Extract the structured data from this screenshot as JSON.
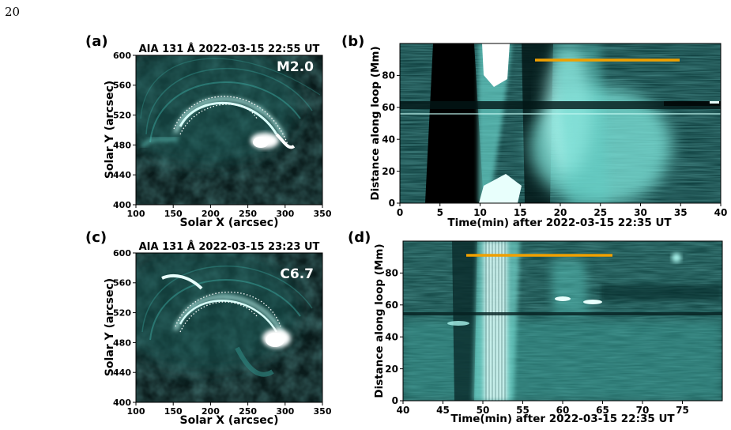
{
  "page_number": "20",
  "panels": [
    {
      "id": "a",
      "label": "(a)",
      "title": "AIA 131 Å 2022-03-15 22:55 UT",
      "annotation": "M2.0",
      "xlabel": "Solar X (arcsec)",
      "ylabel": "Solar Y (arcsec)",
      "xticks": [
        "100",
        "150",
        "200",
        "250",
        "300",
        "350"
      ],
      "yticks": [
        "400",
        "440",
        "480",
        "520",
        "560",
        "600"
      ]
    },
    {
      "id": "b",
      "label": "(b)",
      "xlabel": "Time(min) after 2022-03-15 22:35 UT",
      "ylabel": "Distance along loop (Mm)",
      "xticks": [
        "0",
        "5",
        "10",
        "15",
        "20",
        "25",
        "30",
        "35",
        "40"
      ],
      "yticks": [
        "0",
        "20",
        "40",
        "60",
        "80"
      ]
    },
    {
      "id": "c",
      "label": "(c)",
      "title": "AIA 131 Å 2022-03-15 23:23 UT",
      "annotation": "C6.7",
      "xlabel": "Solar X (arcsec)",
      "ylabel": "Solar Y (arcsec)",
      "xticks": [
        "100",
        "150",
        "200",
        "250",
        "300",
        "350"
      ],
      "yticks": [
        "400",
        "440",
        "480",
        "520",
        "560",
        "600"
      ]
    },
    {
      "id": "d",
      "label": "(d)",
      "xlabel": "Time(min) after 2022-03-15 22:35 UT",
      "ylabel": "Distance along loop (Mm)",
      "xticks": [
        "40",
        "45",
        "50",
        "55",
        "60",
        "65",
        "70",
        "75"
      ],
      "yticks": [
        "0",
        "20",
        "40",
        "60",
        "80"
      ]
    }
  ],
  "chart_data": [
    {
      "type": "image",
      "panel": "a",
      "title": "AIA 131 Å 2022-03-15 22:55 UT",
      "annotation": "M2.0",
      "xlabel": "Solar X (arcsec)",
      "ylabel": "Solar Y (arcsec)",
      "xlim": [
        100,
        350
      ],
      "ylim": [
        400,
        600
      ],
      "colormap": "aia131-teal",
      "loop_outline_style": "white dotted"
    },
    {
      "type": "heatmap",
      "panel": "b",
      "xlabel": "Time(min) after 2022-03-15 22:35 UT",
      "ylabel": "Distance along loop (Mm)",
      "xlim": [
        0,
        40
      ],
      "ylim": [
        0,
        100
      ],
      "colormap": "aia131-teal",
      "marker_line": {
        "color": "#f0a000",
        "x": [
          17,
          35
        ],
        "y": 89
      }
    },
    {
      "type": "image",
      "panel": "c",
      "title": "AIA 131 Å 2022-03-15 23:23 UT",
      "annotation": "C6.7",
      "xlabel": "Solar X (arcsec)",
      "ylabel": "Solar Y (arcsec)",
      "xlim": [
        100,
        350
      ],
      "ylim": [
        400,
        600
      ],
      "colormap": "aia131-teal",
      "loop_outline_style": "white dotted"
    },
    {
      "type": "heatmap",
      "panel": "d",
      "xlabel": "Time(min) after 2022-03-15 22:35 UT",
      "ylabel": "Distance along loop (Mm)",
      "xlim": [
        40,
        80
      ],
      "ylim": [
        0,
        100
      ],
      "colormap": "aia131-teal",
      "marker_line": {
        "color": "#f0a000",
        "x": [
          48,
          66
        ],
        "y": 91
      }
    }
  ]
}
